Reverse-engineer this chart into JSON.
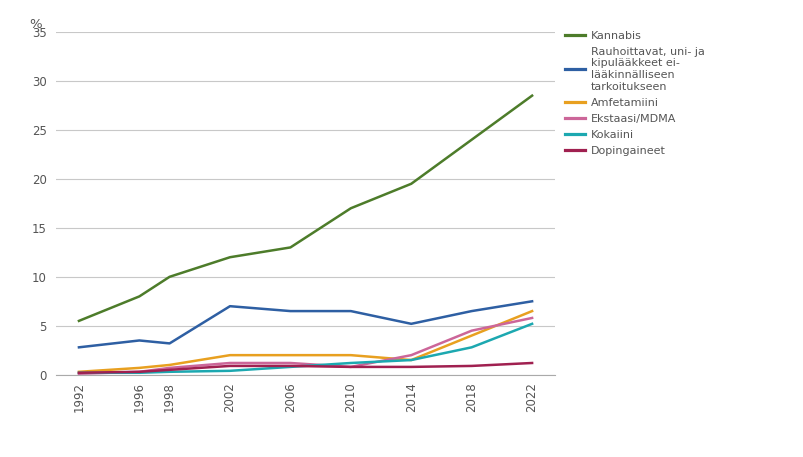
{
  "series": [
    {
      "label": "Kannabis",
      "color": "#4d7c2a",
      "years": [
        1992,
        1996,
        1998,
        2002,
        2006,
        2010,
        2014,
        2018,
        2022
      ],
      "values": [
        5.5,
        8.0,
        10.0,
        12.0,
        13.0,
        17.0,
        19.5,
        24.0,
        28.5
      ]
    },
    {
      "label": "Rauhoittavat, uni- ja\nkipulääkkeet ei-\nlääkinnälliseen\ntarkoitukseen",
      "color": "#2e5fa3",
      "years": [
        1992,
        1996,
        1998,
        2002,
        2006,
        2010,
        2014,
        2018,
        2022
      ],
      "values": [
        2.8,
        3.5,
        3.2,
        7.0,
        6.5,
        6.5,
        5.2,
        6.5,
        7.5
      ]
    },
    {
      "label": "Amfetamiini",
      "color": "#e8a020",
      "years": [
        1992,
        1996,
        1998,
        2002,
        2006,
        2010,
        2014,
        2018,
        2022
      ],
      "values": [
        0.3,
        0.7,
        1.0,
        2.0,
        2.0,
        2.0,
        1.5,
        4.0,
        6.5
      ]
    },
    {
      "label": "Ekstaasi/MDMA",
      "color": "#cc6699",
      "years": [
        1992,
        1996,
        1998,
        2002,
        2006,
        2010,
        2014,
        2018,
        2022
      ],
      "values": [
        0.1,
        0.3,
        0.7,
        1.2,
        1.2,
        0.8,
        2.0,
        4.5,
        5.8
      ]
    },
    {
      "label": "Kokaiini",
      "color": "#1ca8b0",
      "years": [
        1992,
        1996,
        1998,
        2002,
        2006,
        2010,
        2014,
        2018,
        2022
      ],
      "values": [
        0.2,
        0.2,
        0.3,
        0.4,
        0.8,
        1.2,
        1.5,
        2.8,
        5.2
      ]
    },
    {
      "label": "Dopingaineet",
      "color": "#a02050",
      "years": [
        1992,
        1996,
        1998,
        2002,
        2006,
        2010,
        2014,
        2018,
        2022
      ],
      "values": [
        0.2,
        0.3,
        0.5,
        0.9,
        0.9,
        0.8,
        0.8,
        0.9,
        1.2
      ]
    }
  ],
  "ylabel": "%",
  "ylim": [
    0,
    35
  ],
  "yticks": [
    0,
    5,
    10,
    15,
    20,
    25,
    30,
    35
  ],
  "xticks": [
    1992,
    1996,
    1998,
    2002,
    2006,
    2010,
    2014,
    2018,
    2022
  ],
  "background_color": "#ffffff",
  "grid_color": "#c8c8c8",
  "text_color": "#555555",
  "legend_fontsize": 8.0,
  "axis_fontsize": 8.5,
  "linewidth": 1.8
}
